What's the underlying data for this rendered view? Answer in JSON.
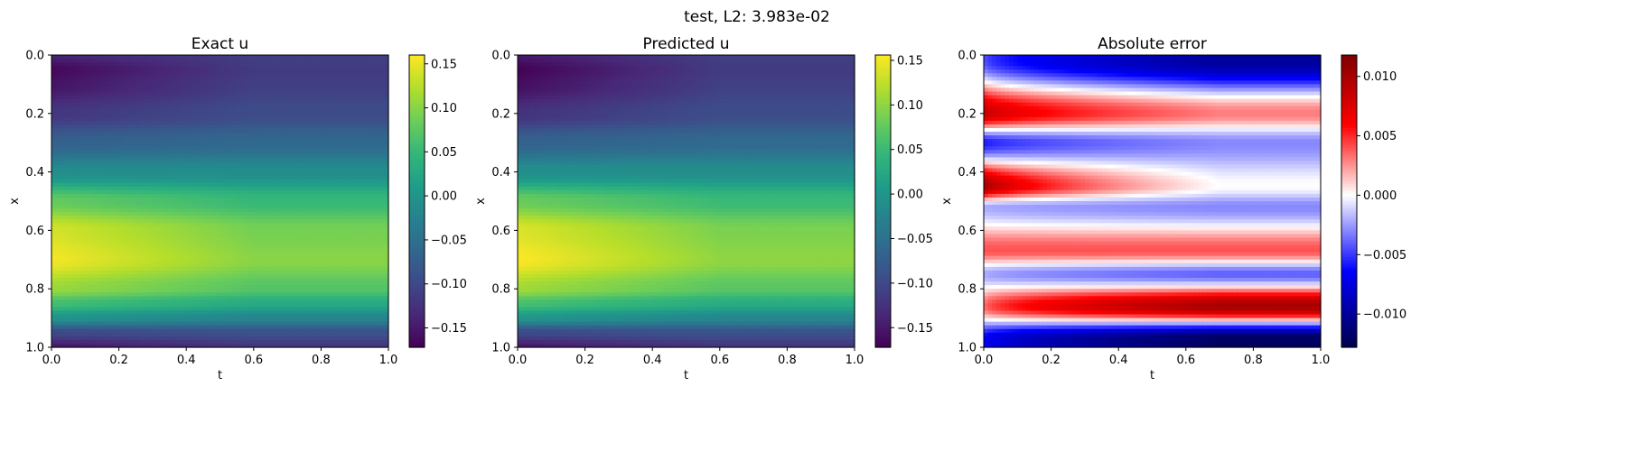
{
  "figure": {
    "title": "test, L2: 3.983e-02"
  },
  "chart_data": [
    {
      "type": "heatmap",
      "title": "Exact u",
      "xlabel": "t",
      "ylabel": "x",
      "xlim": [
        0,
        1
      ],
      "ylim": [
        1,
        0
      ],
      "xticks": [
        "0.0",
        "0.2",
        "0.4",
        "0.6",
        "0.8",
        "1.0"
      ],
      "yticks": [
        "0.0",
        "0.2",
        "0.4",
        "0.6",
        "0.8",
        "1.0"
      ],
      "colormap": "viridis",
      "colorbar": {
        "range": [
          -0.172,
          0.16
        ],
        "ticks": [
          0.15,
          0.1,
          0.05,
          0.0,
          -0.05,
          -0.1,
          -0.15
        ],
        "tick_labels": [
          "0.15",
          "0.10",
          "0.05",
          "0.00",
          "−0.05",
          "−0.10",
          "−0.15"
        ]
      },
      "profile_x": [
        0.0,
        0.05,
        0.1,
        0.2,
        0.3,
        0.4,
        0.5,
        0.6,
        0.7,
        0.8,
        0.85,
        0.9,
        0.95,
        1.0
      ],
      "profile_u_t0": [
        -0.14,
        -0.165,
        -0.155,
        -0.12,
        -0.07,
        -0.01,
        0.08,
        0.14,
        0.155,
        0.11,
        0.06,
        0.0,
        -0.1,
        -0.15
      ],
      "profile_u_t1": [
        -0.11,
        -0.115,
        -0.11,
        -0.095,
        -0.06,
        -0.01,
        0.05,
        0.09,
        0.1,
        0.07,
        0.03,
        -0.02,
        -0.09,
        -0.12
      ]
    },
    {
      "type": "heatmap",
      "title": "Predicted u",
      "xlabel": "t",
      "ylabel": "x",
      "xlim": [
        0,
        1
      ],
      "ylim": [
        1,
        0
      ],
      "xticks": [
        "0.0",
        "0.2",
        "0.4",
        "0.6",
        "0.8",
        "1.0"
      ],
      "yticks": [
        "0.0",
        "0.2",
        "0.4",
        "0.6",
        "0.8",
        "1.0"
      ],
      "colormap": "viridis",
      "colorbar": {
        "range": [
          -0.172,
          0.156
        ],
        "ticks": [
          0.15,
          0.1,
          0.05,
          0.0,
          -0.05,
          -0.1,
          -0.15
        ],
        "tick_labels": [
          "0.15",
          "0.10",
          "0.05",
          "0.00",
          "−0.05",
          "−0.10",
          "−0.15"
        ]
      },
      "profile_x": [
        0.0,
        0.05,
        0.1,
        0.2,
        0.3,
        0.4,
        0.5,
        0.6,
        0.7,
        0.8,
        0.85,
        0.9,
        0.95,
        1.0
      ],
      "profile_u_t0": [
        -0.15,
        -0.17,
        -0.16,
        -0.125,
        -0.07,
        -0.01,
        0.08,
        0.14,
        0.155,
        0.11,
        0.06,
        0.0,
        -0.1,
        -0.15
      ],
      "profile_u_t1": [
        -0.11,
        -0.115,
        -0.11,
        -0.095,
        -0.06,
        -0.01,
        0.05,
        0.09,
        0.1,
        0.07,
        0.03,
        -0.02,
        -0.09,
        -0.12
      ]
    },
    {
      "type": "heatmap",
      "title": "Absolute error",
      "xlabel": "t",
      "ylabel": "x",
      "xlim": [
        0,
        1
      ],
      "ylim": [
        1,
        0
      ],
      "xticks": [
        "0.0",
        "0.2",
        "0.4",
        "0.6",
        "0.8",
        "1.0"
      ],
      "yticks": [
        "0.0",
        "0.2",
        "0.4",
        "0.6",
        "0.8",
        "1.0"
      ],
      "colormap": "seismic",
      "colorbar": {
        "range": [
          -0.0128,
          0.0118
        ],
        "ticks": [
          0.01,
          0.005,
          0.0,
          -0.005,
          -0.01
        ],
        "tick_labels": [
          "0.010",
          "0.005",
          "0.000",
          "−0.005",
          "−0.010"
        ]
      },
      "bands_x": [
        0.02,
        0.2,
        0.3,
        0.45,
        0.52,
        0.67,
        0.75,
        0.86,
        0.97
      ],
      "bands_e0": [
        -0.004,
        0.009,
        -0.006,
        0.011,
        -0.002,
        0.004,
        -0.002,
        0.003,
        -0.006
      ],
      "bands_e1": [
        -0.01,
        0.003,
        -0.003,
        0.0,
        -0.003,
        0.004,
        -0.004,
        0.01,
        -0.012
      ]
    }
  ]
}
